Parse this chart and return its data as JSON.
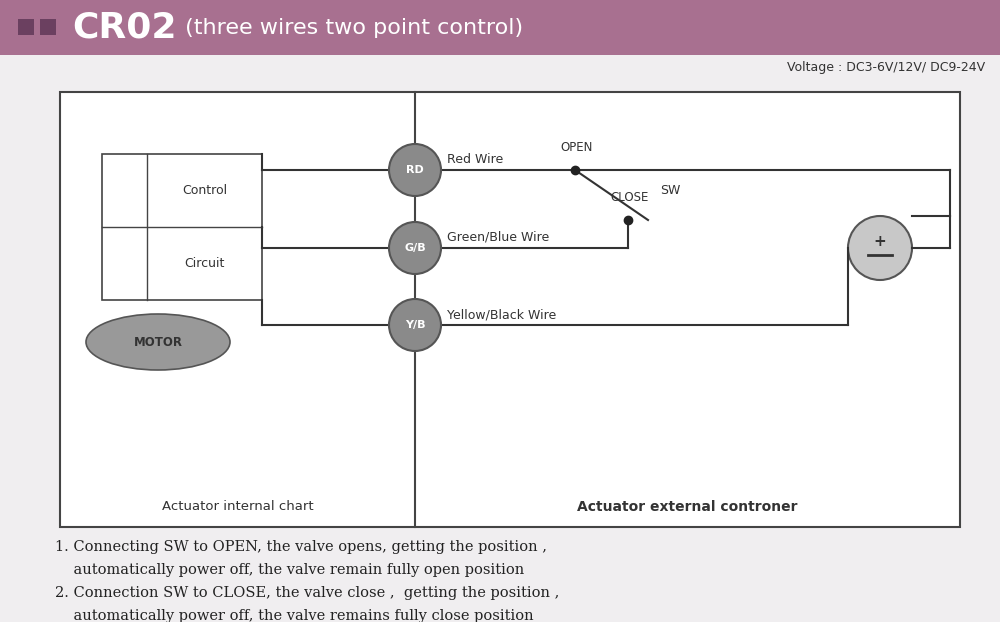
{
  "title_text": "CR02",
  "title_sub": " (three wires two point control)",
  "title_bg_color": "#a87090",
  "title_sq_color": "#6b4060",
  "voltage_text": "Voltage : DC3-6V/12V/ DC9-24V",
  "bg_color": "#f0eef0",
  "diagram_bg": "#ffffff",
  "wire_color": "#333333",
  "circle_fill": "#8a8a8a",
  "motor_fill": "#999999",
  "circle_edge": "#555555",
  "rd_label": "RD",
  "gb_label": "G/B",
  "yb_label": "Y/B",
  "red_wire_label": "Red Wire",
  "green_blue_wire_label": "Green/Blue Wire",
  "yellow_black_wire_label": "Yellow/Black Wire",
  "open_label": "OPEN",
  "close_label": "CLOSE",
  "sw_label": "SW",
  "control_text1": "Control",
  "control_text2": "Circuit",
  "motor_text": "MOTOR",
  "left_label": "Actuator internal chart",
  "right_label": "Actuator external controner",
  "note1": "1. Connecting SW to OPEN, the valve opens, getting the position ,",
  "note2": "    automatically power off, the valve remain fully open position",
  "note3": "2. Connection SW to CLOSE, the valve close ,  getting the position ,",
  "note4": "    automatically power off, the valve remains fully close position"
}
